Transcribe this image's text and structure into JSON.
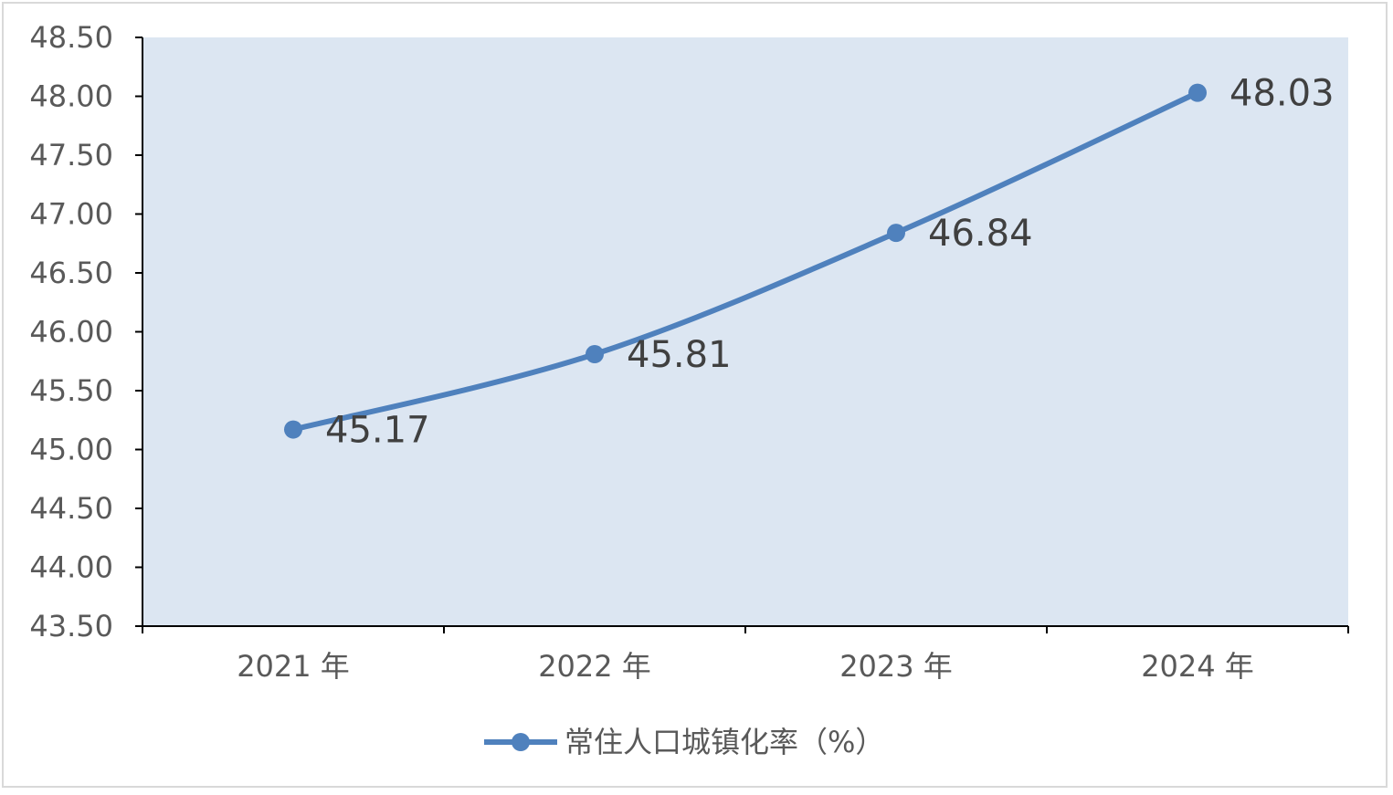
{
  "chart_data": {
    "type": "line",
    "categories": [
      "2021 年",
      "2022 年",
      "2023 年",
      "2024 年"
    ],
    "series": [
      {
        "name": "常住人口城镇化率（%）",
        "values": [
          45.17,
          45.81,
          46.84,
          48.03
        ]
      }
    ],
    "ylim": [
      43.5,
      48.5
    ],
    "yticks": [
      "43.50",
      "44.00",
      "44.50",
      "45.00",
      "45.50",
      "46.00",
      "46.50",
      "47.00",
      "47.50",
      "48.00",
      "48.50"
    ],
    "legend_position": "bottom",
    "grid": false,
    "colors": {
      "series": "#4f81bd",
      "plot_background": "#dce6f2",
      "axis": "#000000"
    }
  }
}
